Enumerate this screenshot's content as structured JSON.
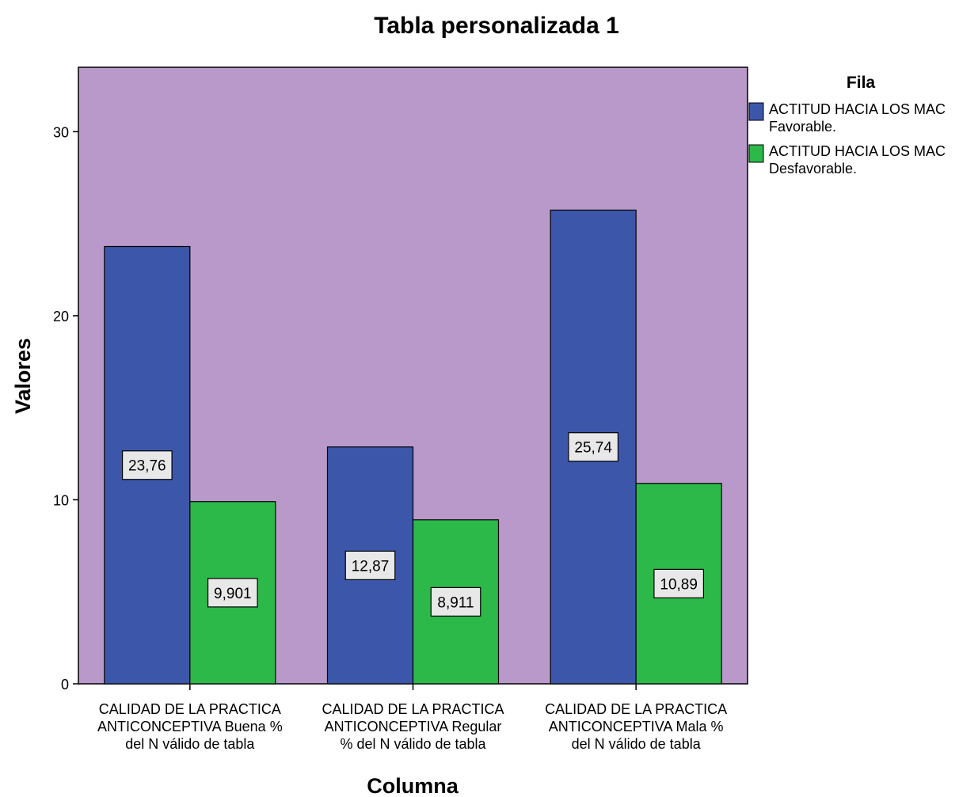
{
  "chart_data": {
    "type": "bar",
    "title": "Tabla personalizada 1",
    "xlabel": "Columna",
    "ylabel": "Valores",
    "ylim": [
      0,
      33.5
    ],
    "yticks": [
      0,
      10,
      20,
      30
    ],
    "grid": false,
    "legend_position": "right",
    "legend_title": "Fila",
    "plot_background": "#b899c9",
    "categories": [
      [
        "CALIDAD DE LA PRACTICA",
        "ANTICONCEPTIVA Buena %",
        "del N válido de tabla"
      ],
      [
        "CALIDAD DE LA PRACTICA",
        "ANTICONCEPTIVA Regular",
        "% del N válido de tabla"
      ],
      [
        "CALIDAD DE LA PRACTICA",
        "ANTICONCEPTIVA Mala %",
        "del N válido de tabla"
      ]
    ],
    "series": [
      {
        "name": [
          "ACTITUD HACIA LOS MAC",
          "Favorable."
        ],
        "color": "#3c57aa",
        "values": [
          23.76,
          12.87,
          25.74
        ],
        "labels": [
          "23,76",
          "12,87",
          "25,74"
        ]
      },
      {
        "name": [
          "ACTITUD HACIA LOS MAC",
          "Desfavorable."
        ],
        "color": "#2db84a",
        "values": [
          9.901,
          8.911,
          10.89
        ],
        "labels": [
          "9,901",
          "8,911",
          "10,89"
        ]
      }
    ]
  }
}
